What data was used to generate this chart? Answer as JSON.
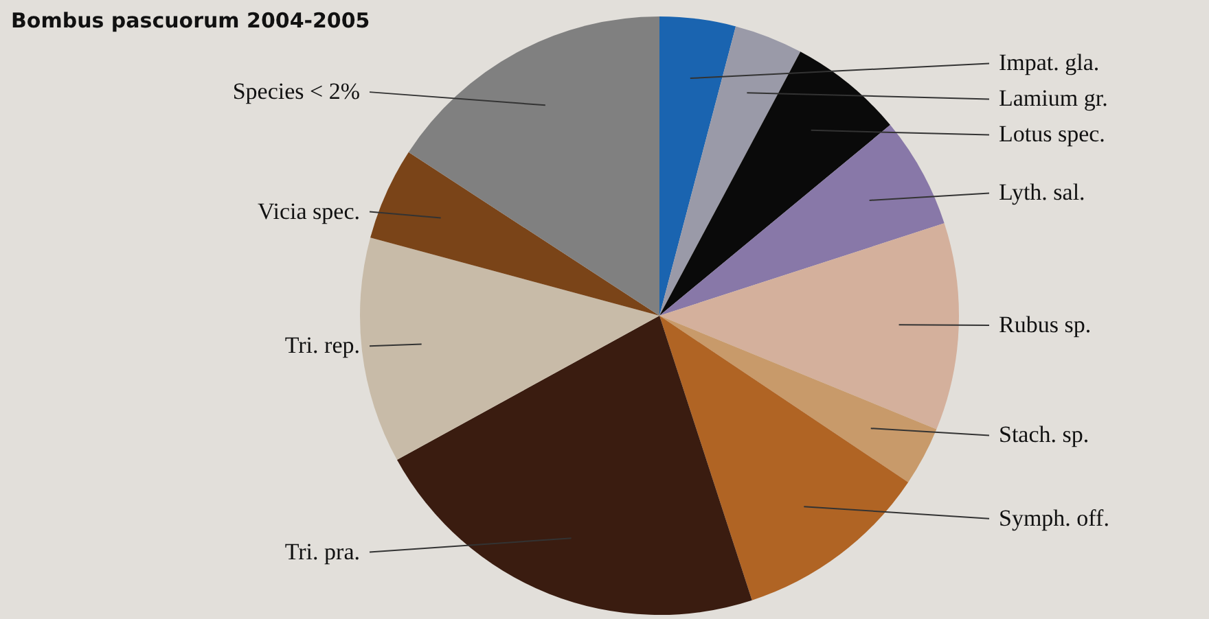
{
  "chart_data": {
    "type": "pie",
    "title": "Bombus pascuorum 2004-2005",
    "categories": [
      "Impat. gla.",
      "Lamium gr.",
      "Lotus spec.",
      "Lyth. sal.",
      "Rubus sp.",
      "Stach. sp.",
      "Symph. off.",
      "Tri. pra.",
      "Tri. rep.",
      "Vicia spec.",
      "Species < 2%"
    ],
    "values": [
      4.1,
      3.7,
      6.2,
      6.0,
      11.2,
      3.2,
      10.6,
      22.0,
      12.2,
      5.0,
      15.8
    ],
    "colors": [
      "#1a64b0",
      "#9a9aa8",
      "#0a0a0a",
      "#8878a8",
      "#d4b09c",
      "#c89a6a",
      "#b06424",
      "#3a1c10",
      "#c8bba8",
      "#7a4418",
      "#808080"
    ]
  }
}
